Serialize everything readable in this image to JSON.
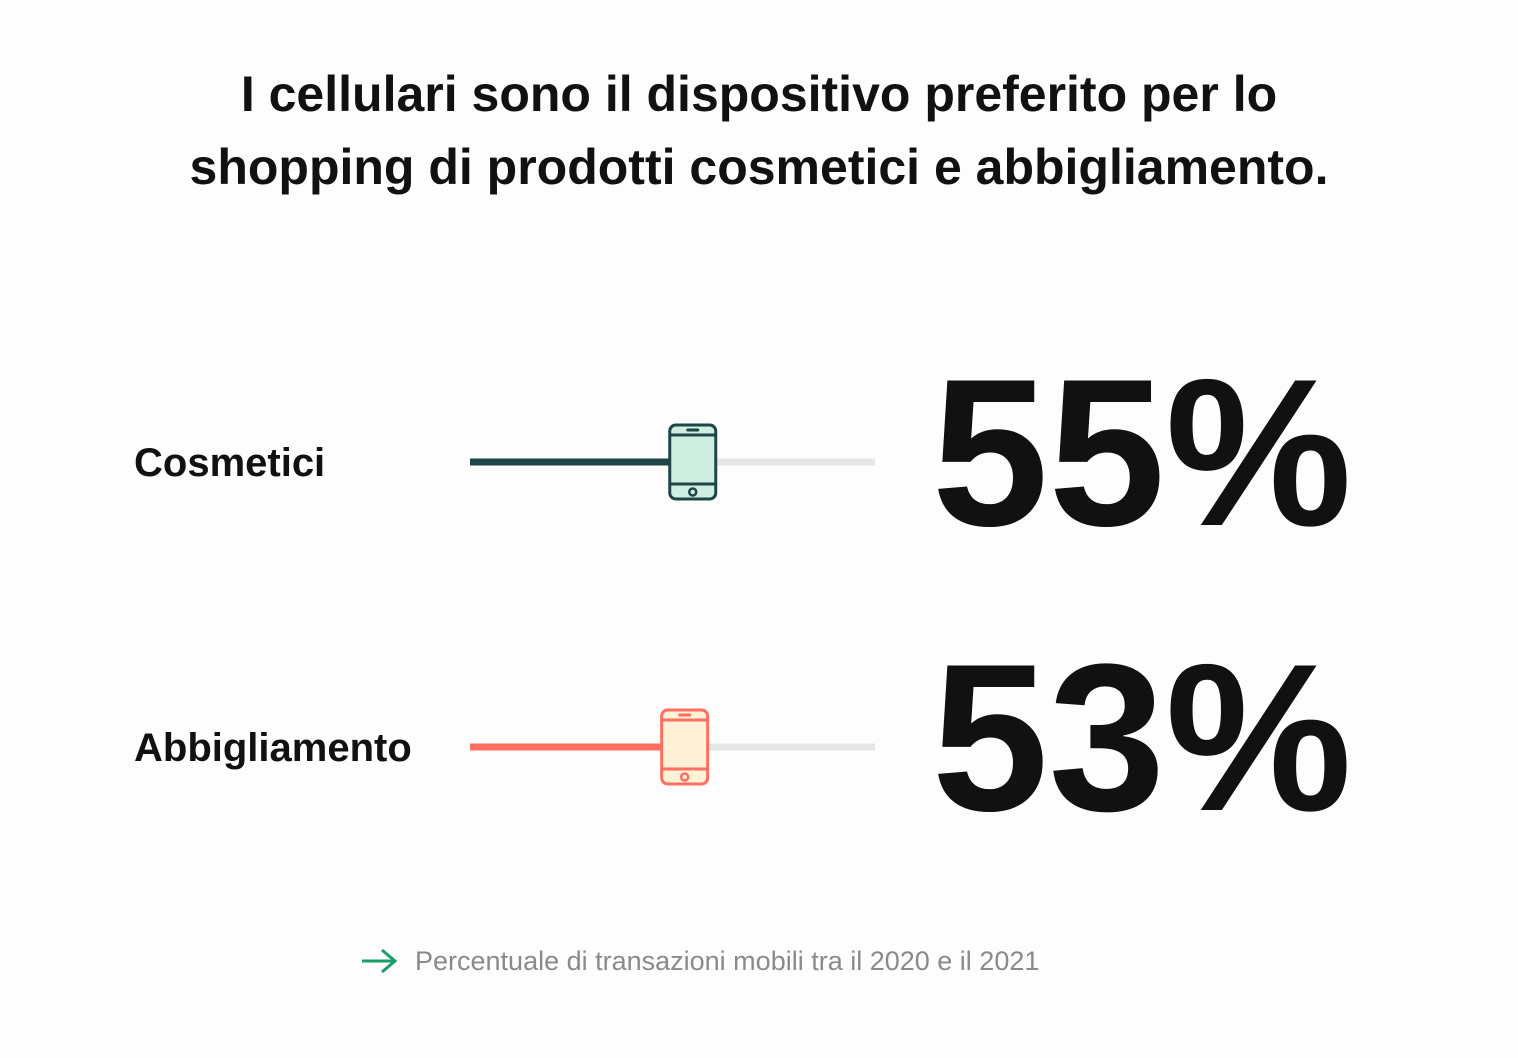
{
  "chart_data": {
    "type": "slider",
    "title": "I cellulari sono il dispositivo preferito per lo shopping di prodotti cosmetici e abbigliamento.",
    "categories": [
      "Cosmetici",
      "Abbigliamento"
    ],
    "values": [
      55,
      53
    ],
    "value_labels": [
      "55%",
      "53%"
    ],
    "colors": [
      "#1f4548",
      "#ff6f61"
    ],
    "marker_fills": [
      "#cdeee0",
      "#fff2d6"
    ],
    "track_color": "#e6e6e6",
    "xlim": [
      0,
      100
    ],
    "note": "Percentuale di transazioni mobili tra il 2020 e il 2021"
  }
}
